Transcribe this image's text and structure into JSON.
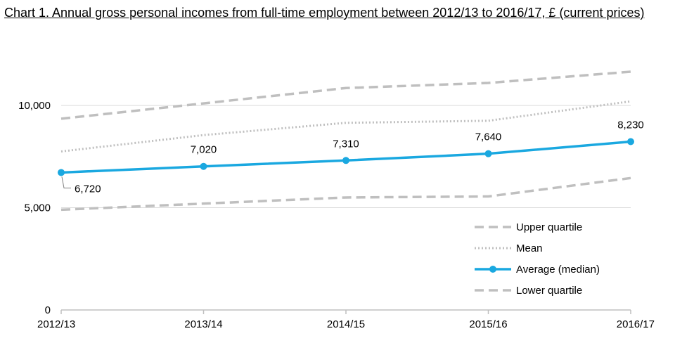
{
  "chart_data": {
    "type": "line",
    "title": "Chart 1. Annual gross personal incomes from full-time employment between 2012/13 to 2016/17, £ (current prices)",
    "categories": [
      "2012/13",
      "2013/14",
      "2014/15",
      "2015/16",
      "2016/17"
    ],
    "ylim": [
      0,
      12000
    ],
    "yticks": [
      0,
      5000,
      10000
    ],
    "ytick_labels": [
      "0",
      "5,000",
      "10,000"
    ],
    "grid": true,
    "legend_position": "bottom-right",
    "series": [
      {
        "name": "Upper quartile",
        "values": [
          9350,
          10100,
          10850,
          11100,
          11650
        ],
        "color": "#bfbfbf",
        "style": "dashed"
      },
      {
        "name": "Mean",
        "values": [
          7750,
          8550,
          9150,
          9250,
          10200
        ],
        "color": "#bfbfbf",
        "style": "dotted"
      },
      {
        "name": "Average (median)",
        "values": [
          6720,
          7020,
          7310,
          7640,
          8230
        ],
        "color": "#1aa8e0",
        "style": "solid-markers",
        "data_labels": [
          "6,720",
          "7,020",
          "7,310",
          "7,640",
          "8,230"
        ]
      },
      {
        "name": "Lower quartile",
        "values": [
          4900,
          5200,
          5500,
          5550,
          6450
        ],
        "color": "#bfbfbf",
        "style": "dashed"
      }
    ]
  }
}
